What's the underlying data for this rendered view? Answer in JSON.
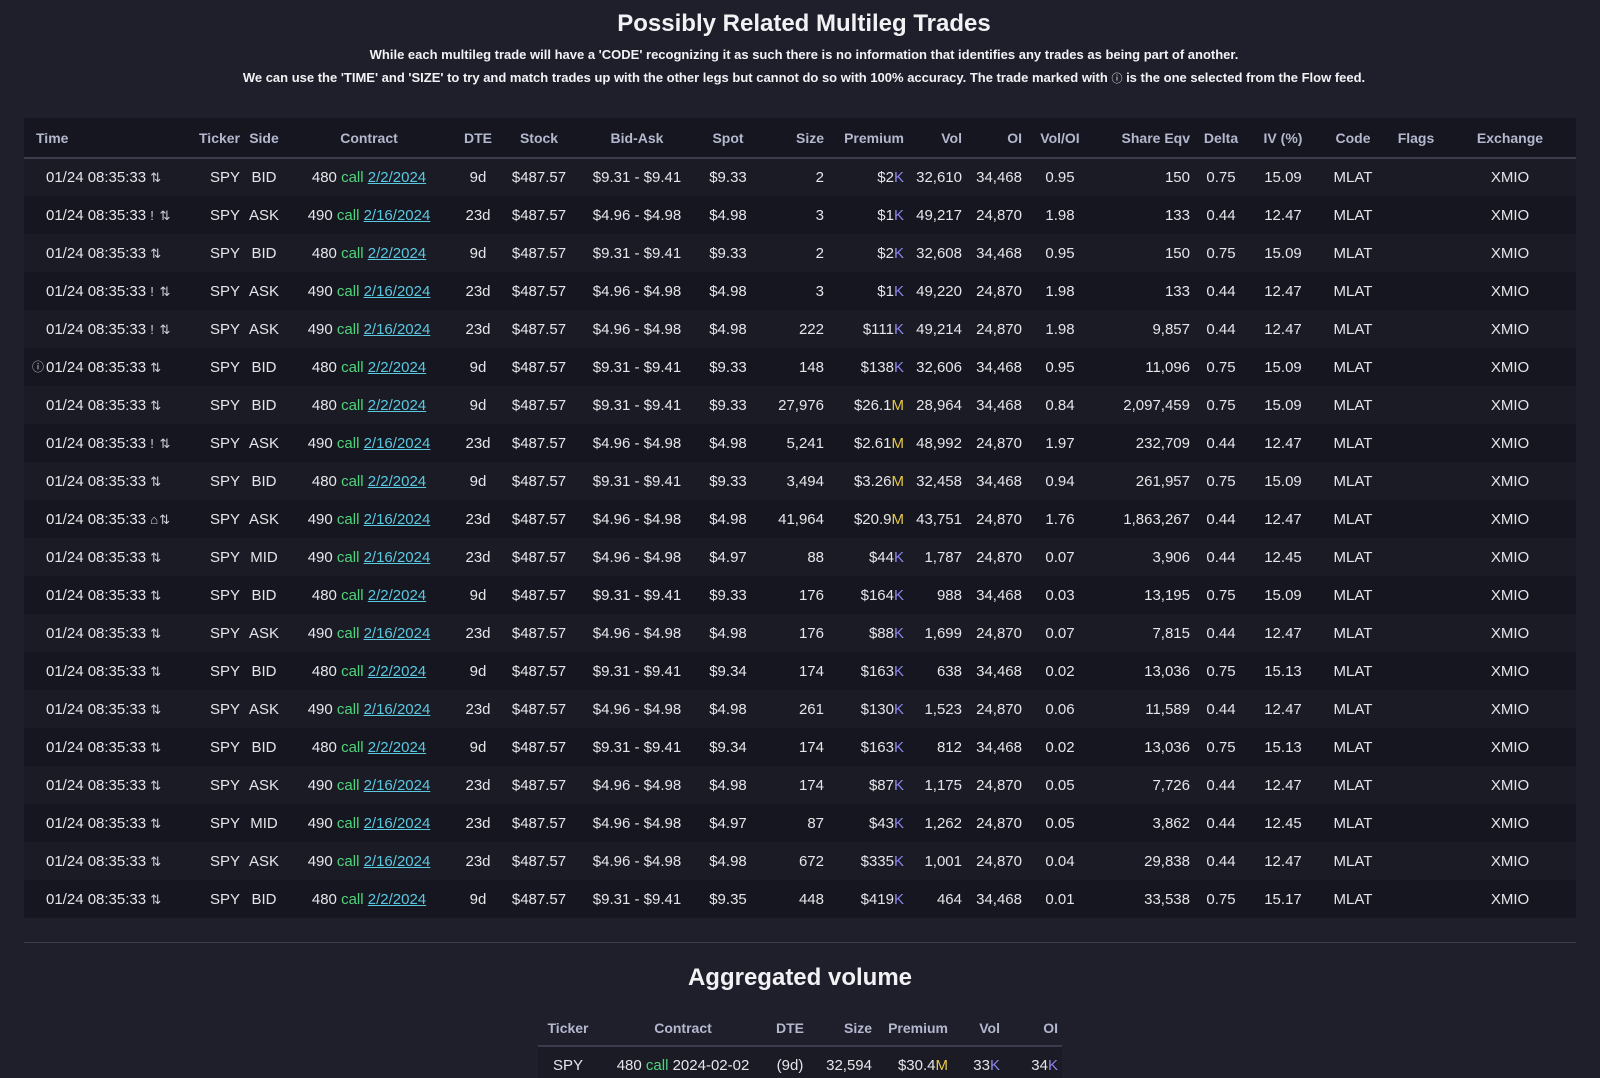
{
  "header": {
    "title": "Possibly Related Multileg Trades",
    "subtitle1": "While each multileg trade will have a 'CODE' recognizing it as such there is no information that identifies any trades as being part of another.",
    "subtitle2_before": "We can use the 'TIME' and 'SIZE' to try and match trades up with the other legs but cannot do so with 100% accuracy. The trade marked with",
    "subtitle2_after": "is the one selected from the Flow feed."
  },
  "columns": {
    "time": "Time",
    "ticker": "Ticker",
    "side": "Side",
    "contract": "Contract",
    "dte": "DTE",
    "stock": "Stock",
    "bidask": "Bid-Ask",
    "spot": "Spot",
    "size": "Size",
    "premium": "Premium",
    "vol": "Vol",
    "oi": "OI",
    "voloi": "Vol/OI",
    "shareeqv": "Share Eqv",
    "delta": "Delta",
    "iv": "IV (%)",
    "code": "Code",
    "flags": "Flags",
    "exchange": "Exchange"
  },
  "icons": {
    "info": "info-circle-icon",
    "multileg": "arrows-updown-icon",
    "alert": "exclamation-icon",
    "sweep": "lock-icon"
  },
  "colors": {
    "bid": "#e8c84a",
    "ask": "#9d8cf0",
    "mid": "#d98780",
    "call": "#4fd47c",
    "link": "#5bc8e0",
    "k": "#8e86ee",
    "m": "#e8c84a"
  },
  "trades": [
    {
      "time": "01/24 08:35:33",
      "flag": "",
      "selected": false,
      "ticker": "SPY",
      "side": "BID",
      "strike": "480",
      "type": "call",
      "exp": "2/2/2024",
      "dte": "9d",
      "stock": "$487.57",
      "bidask": "$9.31 - $9.41",
      "spot": "$9.33",
      "size": "2",
      "size_hl": false,
      "prem": "$2",
      "unit": "K",
      "vol": "32,610",
      "oi": "34,468",
      "voloi": "0.95",
      "shareeqv": "150",
      "delta": "0.75",
      "iv": "15.09",
      "code": "MLAT",
      "flags": "",
      "exchange": "XMIO"
    },
    {
      "time": "01/24 08:35:33",
      "flag": "!",
      "selected": false,
      "ticker": "SPY",
      "side": "ASK",
      "strike": "490",
      "type": "call",
      "exp": "2/16/2024",
      "dte": "23d",
      "stock": "$487.57",
      "bidask": "$4.96 - $4.98",
      "spot": "$4.98",
      "size": "3",
      "size_hl": false,
      "prem": "$1",
      "unit": "K",
      "vol": "49,217",
      "oi": "24,870",
      "voloi": "1.98",
      "shareeqv": "133",
      "delta": "0.44",
      "iv": "12.47",
      "code": "MLAT",
      "flags": "",
      "exchange": "XMIO"
    },
    {
      "time": "01/24 08:35:33",
      "flag": "",
      "selected": false,
      "ticker": "SPY",
      "side": "BID",
      "strike": "480",
      "type": "call",
      "exp": "2/2/2024",
      "dte": "9d",
      "stock": "$487.57",
      "bidask": "$9.31 - $9.41",
      "spot": "$9.33",
      "size": "2",
      "size_hl": false,
      "prem": "$2",
      "unit": "K",
      "vol": "32,608",
      "oi": "34,468",
      "voloi": "0.95",
      "shareeqv": "150",
      "delta": "0.75",
      "iv": "15.09",
      "code": "MLAT",
      "flags": "",
      "exchange": "XMIO"
    },
    {
      "time": "01/24 08:35:33",
      "flag": "!",
      "selected": false,
      "ticker": "SPY",
      "side": "ASK",
      "strike": "490",
      "type": "call",
      "exp": "2/16/2024",
      "dte": "23d",
      "stock": "$487.57",
      "bidask": "$4.96 - $4.98",
      "spot": "$4.98",
      "size": "3",
      "size_hl": false,
      "prem": "$1",
      "unit": "K",
      "vol": "49,220",
      "oi": "24,870",
      "voloi": "1.98",
      "shareeqv": "133",
      "delta": "0.44",
      "iv": "12.47",
      "code": "MLAT",
      "flags": "",
      "exchange": "XMIO"
    },
    {
      "time": "01/24 08:35:33",
      "flag": "!",
      "selected": false,
      "ticker": "SPY",
      "side": "ASK",
      "strike": "490",
      "type": "call",
      "exp": "2/16/2024",
      "dte": "23d",
      "stock": "$487.57",
      "bidask": "$4.96 - $4.98",
      "spot": "$4.98",
      "size": "222",
      "size_hl": false,
      "prem": "$111",
      "unit": "K",
      "vol": "49,214",
      "oi": "24,870",
      "voloi": "1.98",
      "shareeqv": "9,857",
      "delta": "0.44",
      "iv": "12.47",
      "code": "MLAT",
      "flags": "",
      "exchange": "XMIO"
    },
    {
      "time": "01/24 08:35:33",
      "flag": "",
      "selected": true,
      "ticker": "SPY",
      "side": "BID",
      "strike": "480",
      "type": "call",
      "exp": "2/2/2024",
      "dte": "9d",
      "stock": "$487.57",
      "bidask": "$9.31 - $9.41",
      "spot": "$9.33",
      "size": "148",
      "size_hl": false,
      "prem": "$138",
      "unit": "K",
      "vol": "32,606",
      "oi": "34,468",
      "voloi": "0.95",
      "shareeqv": "11,096",
      "delta": "0.75",
      "iv": "15.09",
      "code": "MLAT",
      "flags": "",
      "exchange": "XMIO"
    },
    {
      "time": "01/24 08:35:33",
      "flag": "",
      "selected": false,
      "ticker": "SPY",
      "side": "BID",
      "strike": "480",
      "type": "call",
      "exp": "2/2/2024",
      "dte": "9d",
      "stock": "$487.57",
      "bidask": "$9.31 - $9.41",
      "spot": "$9.33",
      "size": "27,976",
      "size_hl": false,
      "prem": "$26.1",
      "unit": "M",
      "vol": "28,964",
      "oi": "34,468",
      "voloi": "0.84",
      "shareeqv": "2,097,459",
      "delta": "0.75",
      "iv": "15.09",
      "code": "MLAT",
      "flags": "",
      "exchange": "XMIO"
    },
    {
      "time": "01/24 08:35:33",
      "flag": "!",
      "selected": false,
      "ticker": "SPY",
      "side": "ASK",
      "strike": "490",
      "type": "call",
      "exp": "2/16/2024",
      "dte": "23d",
      "stock": "$487.57",
      "bidask": "$4.96 - $4.98",
      "spot": "$4.98",
      "size": "5,241",
      "size_hl": false,
      "prem": "$2.61",
      "unit": "M",
      "vol": "48,992",
      "oi": "24,870",
      "voloi": "1.97",
      "shareeqv": "232,709",
      "delta": "0.44",
      "iv": "12.47",
      "code": "MLAT",
      "flags": "",
      "exchange": "XMIO"
    },
    {
      "time": "01/24 08:35:33",
      "flag": "",
      "selected": false,
      "ticker": "SPY",
      "side": "BID",
      "strike": "480",
      "type": "call",
      "exp": "2/2/2024",
      "dte": "9d",
      "stock": "$487.57",
      "bidask": "$9.31 - $9.41",
      "spot": "$9.33",
      "size": "3,494",
      "size_hl": false,
      "prem": "$3.26",
      "unit": "M",
      "vol": "32,458",
      "oi": "34,468",
      "voloi": "0.94",
      "shareeqv": "261,957",
      "delta": "0.75",
      "iv": "15.09",
      "code": "MLAT",
      "flags": "",
      "exchange": "XMIO"
    },
    {
      "time": "01/24 08:35:33",
      "flag": "lock",
      "selected": false,
      "ticker": "SPY",
      "side": "ASK",
      "strike": "490",
      "type": "call",
      "exp": "2/16/2024",
      "dte": "23d",
      "stock": "$487.57",
      "bidask": "$4.96 - $4.98",
      "spot": "$4.98",
      "size": "41,964",
      "size_hl": true,
      "prem": "$20.9",
      "unit": "M",
      "vol": "43,751",
      "oi": "24,870",
      "voloi": "1.76",
      "shareeqv": "1,863,267",
      "delta": "0.44",
      "iv": "12.47",
      "code": "MLAT",
      "flags": "",
      "exchange": "XMIO"
    },
    {
      "time": "01/24 08:35:33",
      "flag": "",
      "selected": false,
      "ticker": "SPY",
      "side": "MID",
      "strike": "490",
      "type": "call",
      "exp": "2/16/2024",
      "dte": "23d",
      "stock": "$487.57",
      "bidask": "$4.96 - $4.98",
      "spot": "$4.97",
      "size": "88",
      "size_hl": false,
      "prem": "$44",
      "unit": "K",
      "vol": "1,787",
      "oi": "24,870",
      "voloi": "0.07",
      "shareeqv": "3,906",
      "delta": "0.44",
      "iv": "12.45",
      "code": "MLAT",
      "flags": "",
      "exchange": "XMIO"
    },
    {
      "time": "01/24 08:35:33",
      "flag": "",
      "selected": false,
      "ticker": "SPY",
      "side": "BID",
      "strike": "480",
      "type": "call",
      "exp": "2/2/2024",
      "dte": "9d",
      "stock": "$487.57",
      "bidask": "$9.31 - $9.41",
      "spot": "$9.33",
      "size": "176",
      "size_hl": false,
      "prem": "$164",
      "unit": "K",
      "vol": "988",
      "oi": "34,468",
      "voloi": "0.03",
      "shareeqv": "13,195",
      "delta": "0.75",
      "iv": "15.09",
      "code": "MLAT",
      "flags": "",
      "exchange": "XMIO"
    },
    {
      "time": "01/24 08:35:33",
      "flag": "",
      "selected": false,
      "ticker": "SPY",
      "side": "ASK",
      "strike": "490",
      "type": "call",
      "exp": "2/16/2024",
      "dte": "23d",
      "stock": "$487.57",
      "bidask": "$4.96 - $4.98",
      "spot": "$4.98",
      "size": "176",
      "size_hl": false,
      "prem": "$88",
      "unit": "K",
      "vol": "1,699",
      "oi": "24,870",
      "voloi": "0.07",
      "shareeqv": "7,815",
      "delta": "0.44",
      "iv": "12.47",
      "code": "MLAT",
      "flags": "",
      "exchange": "XMIO"
    },
    {
      "time": "01/24 08:35:33",
      "flag": "",
      "selected": false,
      "ticker": "SPY",
      "side": "BID",
      "strike": "480",
      "type": "call",
      "exp": "2/2/2024",
      "dte": "9d",
      "stock": "$487.57",
      "bidask": "$9.31 - $9.41",
      "spot": "$9.34",
      "size": "174",
      "size_hl": false,
      "prem": "$163",
      "unit": "K",
      "vol": "638",
      "oi": "34,468",
      "voloi": "0.02",
      "shareeqv": "13,036",
      "delta": "0.75",
      "iv": "15.13",
      "code": "MLAT",
      "flags": "",
      "exchange": "XMIO"
    },
    {
      "time": "01/24 08:35:33",
      "flag": "",
      "selected": false,
      "ticker": "SPY",
      "side": "ASK",
      "strike": "490",
      "type": "call",
      "exp": "2/16/2024",
      "dte": "23d",
      "stock": "$487.57",
      "bidask": "$4.96 - $4.98",
      "spot": "$4.98",
      "size": "261",
      "size_hl": false,
      "prem": "$130",
      "unit": "K",
      "vol": "1,523",
      "oi": "24,870",
      "voloi": "0.06",
      "shareeqv": "11,589",
      "delta": "0.44",
      "iv": "12.47",
      "code": "MLAT",
      "flags": "",
      "exchange": "XMIO"
    },
    {
      "time": "01/24 08:35:33",
      "flag": "",
      "selected": false,
      "ticker": "SPY",
      "side": "BID",
      "strike": "480",
      "type": "call",
      "exp": "2/2/2024",
      "dte": "9d",
      "stock": "$487.57",
      "bidask": "$9.31 - $9.41",
      "spot": "$9.34",
      "size": "174",
      "size_hl": false,
      "prem": "$163",
      "unit": "K",
      "vol": "812",
      "oi": "34,468",
      "voloi": "0.02",
      "shareeqv": "13,036",
      "delta": "0.75",
      "iv": "15.13",
      "code": "MLAT",
      "flags": "",
      "exchange": "XMIO"
    },
    {
      "time": "01/24 08:35:33",
      "flag": "",
      "selected": false,
      "ticker": "SPY",
      "side": "ASK",
      "strike": "490",
      "type": "call",
      "exp": "2/16/2024",
      "dte": "23d",
      "stock": "$487.57",
      "bidask": "$4.96 - $4.98",
      "spot": "$4.98",
      "size": "174",
      "size_hl": false,
      "prem": "$87",
      "unit": "K",
      "vol": "1,175",
      "oi": "24,870",
      "voloi": "0.05",
      "shareeqv": "7,726",
      "delta": "0.44",
      "iv": "12.47",
      "code": "MLAT",
      "flags": "",
      "exchange": "XMIO"
    },
    {
      "time": "01/24 08:35:33",
      "flag": "",
      "selected": false,
      "ticker": "SPY",
      "side": "MID",
      "strike": "490",
      "type": "call",
      "exp": "2/16/2024",
      "dte": "23d",
      "stock": "$487.57",
      "bidask": "$4.96 - $4.98",
      "spot": "$4.97",
      "size": "87",
      "size_hl": false,
      "prem": "$43",
      "unit": "K",
      "vol": "1,262",
      "oi": "24,870",
      "voloi": "0.05",
      "shareeqv": "3,862",
      "delta": "0.44",
      "iv": "12.45",
      "code": "MLAT",
      "flags": "",
      "exchange": "XMIO"
    },
    {
      "time": "01/24 08:35:33",
      "flag": "",
      "selected": false,
      "ticker": "SPY",
      "side": "ASK",
      "strike": "490",
      "type": "call",
      "exp": "2/16/2024",
      "dte": "23d",
      "stock": "$487.57",
      "bidask": "$4.96 - $4.98",
      "spot": "$4.98",
      "size": "672",
      "size_hl": false,
      "prem": "$335",
      "unit": "K",
      "vol": "1,001",
      "oi": "24,870",
      "voloi": "0.04",
      "shareeqv": "29,838",
      "delta": "0.44",
      "iv": "12.47",
      "code": "MLAT",
      "flags": "",
      "exchange": "XMIO"
    },
    {
      "time": "01/24 08:35:33",
      "flag": "",
      "selected": false,
      "ticker": "SPY",
      "side": "BID",
      "strike": "480",
      "type": "call",
      "exp": "2/2/2024",
      "dte": "9d",
      "stock": "$487.57",
      "bidask": "$9.31 - $9.41",
      "spot": "$9.35",
      "size": "448",
      "size_hl": false,
      "prem": "$419",
      "unit": "K",
      "vol": "464",
      "oi": "34,468",
      "voloi": "0.01",
      "shareeqv": "33,538",
      "delta": "0.75",
      "iv": "15.17",
      "code": "MLAT",
      "flags": "",
      "exchange": "XMIO"
    }
  ],
  "aggregated": {
    "title": "Aggregated volume",
    "columns": {
      "ticker": "Ticker",
      "contract": "Contract",
      "dte": "DTE",
      "size": "Size",
      "premium": "Premium",
      "vol": "Vol",
      "oi": "OI"
    },
    "rows": [
      {
        "ticker": "SPY",
        "strike": "480",
        "type": "call",
        "exp": "2024-02-02",
        "dte": "(9d)",
        "size": "32,594",
        "prem": "$30.4",
        "prem_unit": "M",
        "vol": "33",
        "vol_unit": "K",
        "oi": "34",
        "oi_unit": "K"
      }
    ]
  }
}
